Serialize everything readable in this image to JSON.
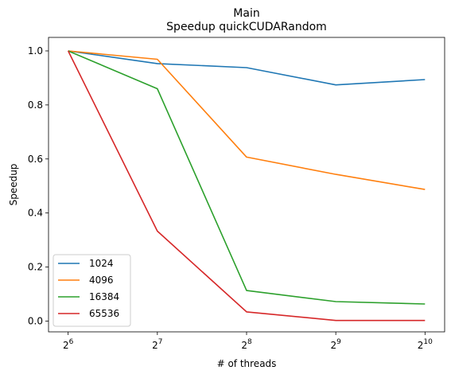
{
  "chart_data": {
    "type": "line",
    "title": "Main",
    "subtitle": "Speedup quickCUDARandom",
    "xlabel": "# of threads",
    "ylabel": "Speedup",
    "x": [
      64,
      128,
      256,
      512,
      1024
    ],
    "x_tick_labels": [
      {
        "base": "2",
        "exp": "6"
      },
      {
        "base": "2",
        "exp": "7"
      },
      {
        "base": "2",
        "exp": "8"
      },
      {
        "base": "2",
        "exp": "9"
      },
      {
        "base": "2",
        "exp": "10"
      }
    ],
    "x_scale": "log2",
    "y_ticks": [
      "0.0",
      "0.2",
      "0.4",
      "0.6",
      "0.8",
      "1.0"
    ],
    "ylim": [
      -0.04,
      1.05
    ],
    "grid": false,
    "legend_position": "lower-left",
    "series": [
      {
        "name": "1024",
        "color": "#1f77b4",
        "values": [
          1.0,
          0.953,
          0.938,
          0.874,
          0.894
        ]
      },
      {
        "name": "4096",
        "color": "#ff7f0e",
        "values": [
          1.0,
          0.969,
          0.607,
          0.543,
          0.487
        ]
      },
      {
        "name": "16384",
        "color": "#2ca02c",
        "values": [
          1.0,
          0.86,
          0.113,
          0.072,
          0.063
        ]
      },
      {
        "name": "65536",
        "color": "#d62728",
        "values": [
          1.0,
          0.333,
          0.034,
          0.002,
          0.002
        ]
      }
    ]
  }
}
